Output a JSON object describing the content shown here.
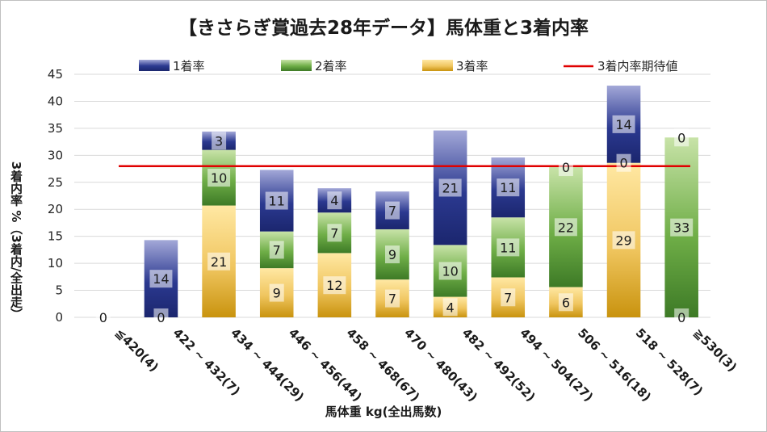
{
  "chart_data": {
    "type": "bar",
    "stacked": true,
    "title": "【きさらぎ賞過去28年データ】馬体重と3着内率",
    "xlabel": "馬体重 kg(全出馬数)",
    "ylabel": "3着内率 %（3着内/全出走）",
    "ylim": [
      0,
      45
    ],
    "yticks": [
      "0",
      "5",
      "10",
      "15",
      "20",
      "25",
      "30",
      "35",
      "40",
      "45"
    ],
    "grid": true,
    "legend_position": "top",
    "categories": [
      "≦420(4)",
      "422 ~ 432(7)",
      "434 ~ 444(29)",
      "446 ~ 456(44)",
      "458 ~ 468(67)",
      "470 ~ 480(43)",
      "482 ~ 492(52)",
      "494 ~ 504(27)",
      "506 ~ 516(18)",
      "518 ~ 528(7)",
      "≧530(3)"
    ],
    "series": [
      {
        "name": "3着率",
        "color": "#d4a017",
        "values": [
          0,
          0,
          20.7,
          9.1,
          11.9,
          7.0,
          3.8,
          7.4,
          5.6,
          28.6,
          0
        ],
        "labels": [
          "0",
          "0",
          "21",
          "9",
          "12",
          "7",
          "4",
          "7",
          "6",
          "29",
          "0"
        ]
      },
      {
        "name": "2着率",
        "color": "#5e9e3a",
        "values": [
          0,
          0,
          10.3,
          6.8,
          7.5,
          9.3,
          9.6,
          11.1,
          22.2,
          0,
          33.3
        ],
        "labels": [
          "",
          "",
          "10",
          "7",
          "7",
          "9",
          "10",
          "11",
          "22",
          "0",
          "33"
        ]
      },
      {
        "name": "1着率",
        "color": "#2b3990",
        "values": [
          0,
          14.3,
          3.4,
          11.4,
          4.5,
          7.0,
          21.2,
          11.1,
          0,
          14.3,
          0
        ],
        "labels": [
          "",
          "14",
          "3",
          "11",
          "4",
          "7",
          "21",
          "11",
          "0",
          "14",
          "0"
        ]
      }
    ],
    "reference_line": {
      "name": "3着内率期待値",
      "value": 28,
      "color": "#e00000"
    },
    "legend": [
      "1着率",
      "2着率",
      "3着率",
      "3着内率期待値"
    ]
  }
}
